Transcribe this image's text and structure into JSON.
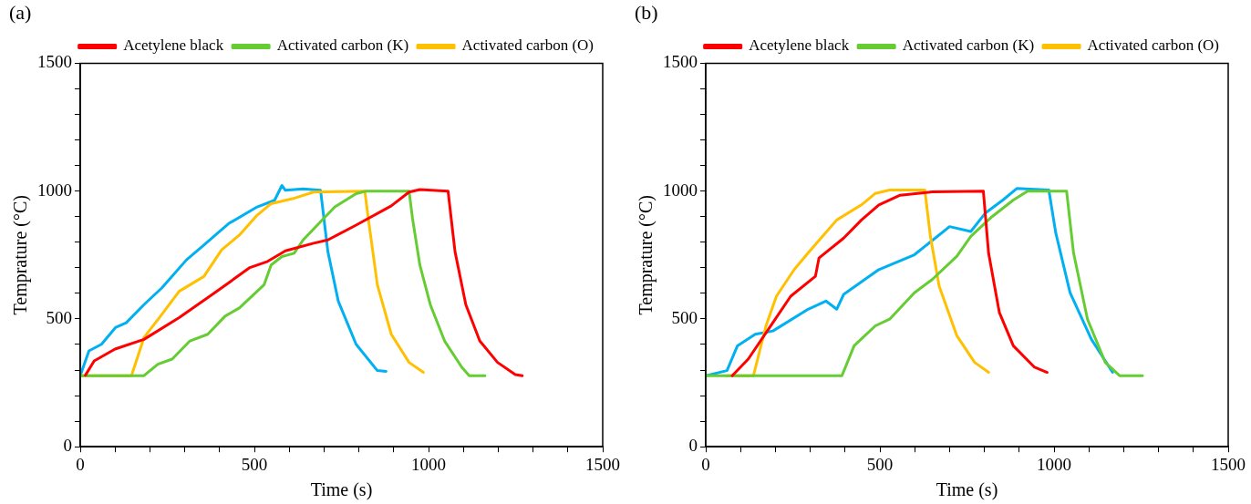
{
  "chart_data": [
    {
      "type": "line",
      "title": "(a)",
      "xlabel": "Time (s)",
      "ylabel": "Temprature (°C)",
      "xlim": [
        0,
        1500
      ],
      "ylim": [
        0,
        1500
      ],
      "xticks": [
        0,
        {
          "value": 100,
          "label": null
        },
        {
          "value": 200,
          "label": null
        },
        {
          "value": 300,
          "label": null
        },
        {
          "value": 400,
          "label": null
        },
        500,
        {
          "value": 600,
          "label": null
        },
        {
          "value": 700,
          "label": null
        },
        {
          "value": 800,
          "label": null
        },
        {
          "value": 900,
          "label": null
        },
        1000,
        {
          "value": 1100,
          "label": null
        },
        {
          "value": 1200,
          "label": null
        },
        {
          "value": 1300,
          "label": null
        },
        {
          "value": 1400,
          "label": null
        },
        1500
      ],
      "yticks": [
        0,
        {
          "value": 100,
          "label": null
        },
        {
          "value": 200,
          "label": null
        },
        {
          "value": 300,
          "label": null
        },
        {
          "value": 400,
          "label": null
        },
        500,
        {
          "value": 600,
          "label": null
        },
        {
          "value": 700,
          "label": null
        },
        {
          "value": 800,
          "label": null
        },
        {
          "value": 900,
          "label": null
        },
        1000,
        {
          "value": 1100,
          "label": null
        },
        {
          "value": 1200,
          "label": null
        },
        {
          "value": 1300,
          "label": null
        },
        {
          "value": 1400,
          "label": null
        },
        1500
      ],
      "grid": false,
      "legend": "top right",
      "marker": "none",
      "line_style": "solid",
      "series": [
        {
          "name": "Acetylene black",
          "color": "#ff0000",
          "x": [
            15,
            40,
            100,
            183,
            284,
            386,
            487,
            538,
            589,
            670,
            711,
            792,
            893,
            944,
            975,
            1056,
            1076,
            1107,
            1147,
            1198,
            1249,
            1269
          ],
          "values": [
            280,
            336,
            382,
            420,
            505,
            602,
            701,
            725,
            766,
            796,
            809,
            867,
            942,
            996,
            1006,
            1000,
            763,
            556,
            414,
            330,
            282,
            278
          ]
        },
        {
          "name": "Activated carbon (K)",
          "color": "#66cc33",
          "x": [
            0,
            183,
            223,
            264,
            315,
            366,
            416,
            457,
            528,
            548,
            579,
            614,
            640,
            690,
            731,
            792,
            822,
            944,
            954,
            975,
            1005,
            1046,
            1096,
            1117,
            1162
          ],
          "values": [
            278,
            278,
            323,
            343,
            414,
            440,
            511,
            543,
            634,
            711,
            744,
            757,
            809,
            880,
            938,
            990,
            1000,
            1000,
            893,
            711,
            556,
            414,
            310,
            278,
            278
          ]
        },
        {
          "name": "Activated carbon (O)",
          "color": "#ffc000",
          "x": [
            0,
            147,
            183,
            234,
            284,
            355,
            406,
            457,
            508,
            548,
            609,
            670,
            817,
            827,
            853,
            893,
            944,
            985
          ],
          "values": [
            278,
            278,
            427,
            517,
            608,
            666,
            770,
            828,
            906,
            951,
            970,
            996,
            1000,
            893,
            634,
            440,
            330,
            291
          ]
        },
        {
          "color": "#00b0f0",
          "x": [
            0,
            25,
            61,
            101,
            132,
            183,
            234,
            305,
            355,
            426,
            508,
            558,
            579,
            589,
            640,
            690,
            711,
            741,
            792,
            853,
            878
          ],
          "values": [
            278,
            375,
            401,
            466,
            485,
            556,
            621,
            731,
            789,
            873,
            938,
            964,
            1022,
            1003,
            1009,
            1003,
            763,
            569,
            401,
            298,
            295
          ]
        }
      ]
    },
    {
      "type": "line",
      "title": "(b)",
      "xlabel": "Time (s)",
      "ylabel": "Temprature (°C)",
      "xlim": [
        0,
        1500
      ],
      "ylim": [
        0,
        1500
      ],
      "xticks": [
        0,
        {
          "value": 100,
          "label": null
        },
        {
          "value": 200,
          "label": null
        },
        {
          "value": 300,
          "label": null
        },
        {
          "value": 400,
          "label": null
        },
        500,
        {
          "value": 600,
          "label": null
        },
        {
          "value": 700,
          "label": null
        },
        {
          "value": 800,
          "label": null
        },
        {
          "value": 900,
          "label": null
        },
        1000,
        {
          "value": 1100,
          "label": null
        },
        {
          "value": 1200,
          "label": null
        },
        {
          "value": 1300,
          "label": null
        },
        {
          "value": 1400,
          "label": null
        },
        1500
      ],
      "yticks": [
        0,
        {
          "value": 100,
          "label": null
        },
        {
          "value": 200,
          "label": null
        },
        {
          "value": 300,
          "label": null
        },
        {
          "value": 400,
          "label": null
        },
        500,
        {
          "value": 600,
          "label": null
        },
        {
          "value": 700,
          "label": null
        },
        {
          "value": 800,
          "label": null
        },
        {
          "value": 900,
          "label": null
        },
        1000,
        {
          "value": 1100,
          "label": null
        },
        {
          "value": 1200,
          "label": null
        },
        {
          "value": 1300,
          "label": null
        },
        {
          "value": 1400,
          "label": null
        },
        1500
      ],
      "grid": false,
      "legend": "top right",
      "marker": "none",
      "line_style": "solid",
      "series": [
        {
          "name": "Acetylene black",
          "color": "#ff0000",
          "x": [
            76,
            122,
            193,
            244,
            315,
            325,
            396,
            447,
            497,
            558,
            650,
            797,
            812,
            843,
            883,
            944,
            980
          ],
          "values": [
            278,
            343,
            486,
            589,
            667,
            738,
            816,
            887,
            946,
            984,
            997,
            1000,
            758,
            525,
            395,
            311,
            291
          ]
        },
        {
          "name": "Activated carbon (K)",
          "color": "#66cc33",
          "x": [
            0,
            391,
            426,
            487,
            528,
            599,
            650,
            721,
            761,
            822,
            883,
            924,
            1036,
            1056,
            1096,
            1147,
            1188,
            1254
          ],
          "values": [
            278,
            278,
            395,
            473,
            499,
            602,
            654,
            745,
            823,
            900,
            965,
            1000,
            1000,
            758,
            499,
            330,
            278,
            278
          ]
        },
        {
          "name": "Activated carbon (O)",
          "color": "#ffc000",
          "x": [
            61,
            137,
            173,
            203,
            254,
            294,
            376,
            447,
            487,
            528,
            629,
            645,
            670,
            721,
            772,
            812
          ],
          "values": [
            278,
            278,
            473,
            589,
            693,
            758,
            887,
            946,
            991,
            1004,
            1004,
            823,
            629,
            434,
            330,
            291
          ]
        },
        {
          "color": "#00b0f0",
          "x": [
            0,
            61,
            91,
            142,
            193,
            294,
            345,
            376,
            396,
            497,
            599,
            700,
            761,
            802,
            853,
            893,
            985,
            1005,
            1046,
            1107,
            1168
          ],
          "values": [
            278,
            298,
            395,
            440,
            453,
            538,
            570,
            538,
            596,
            693,
            751,
            861,
            842,
            913,
            965,
            1010,
            1004,
            836,
            603,
            421,
            291
          ]
        }
      ]
    }
  ]
}
